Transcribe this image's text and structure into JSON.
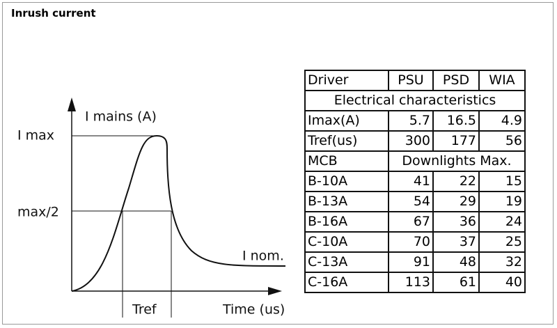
{
  "header": {
    "title": "Inrush current"
  },
  "diagram": {
    "y_axis_label": "I mains (A)",
    "imax_label": "I max",
    "half_label": "max/2",
    "nominal_label": "I nom.",
    "tref_label": "Tref",
    "x_axis_label": "Time (us)"
  },
  "table": {
    "rows": [
      [
        "Driver",
        "PSU",
        "PSD",
        "WIA"
      ],
      [
        "Electrical characteristics"
      ],
      [
        "Imax(A)",
        5.7,
        16.5,
        4.9
      ],
      [
        "Tref(us)",
        300,
        177,
        56
      ],
      [
        "MCB",
        "Downlights Max."
      ],
      [
        "B-10A",
        41,
        22,
        15
      ],
      [
        "B-13A",
        54,
        29,
        19
      ],
      [
        "B-16A",
        67,
        36,
        24
      ],
      [
        "C-10A",
        70,
        37,
        25
      ],
      [
        "C-13A",
        91,
        48,
        32
      ],
      [
        "C-16A",
        113,
        61,
        40
      ]
    ]
  }
}
